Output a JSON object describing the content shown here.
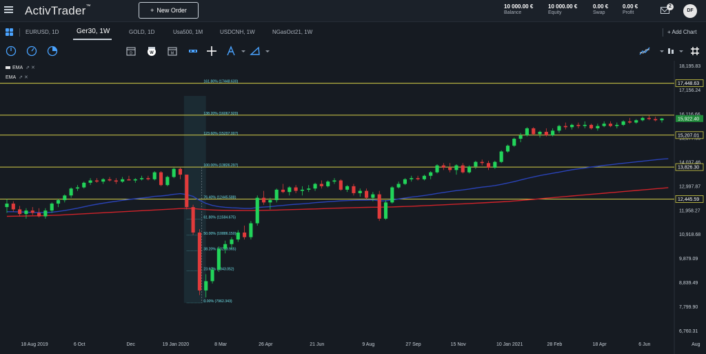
{
  "header": {
    "logo": "ActivTrader",
    "logo_tm": "™",
    "new_order": "New Order",
    "new_order_plus": "+",
    "balance": {
      "value": "10 000.00 €",
      "label": "Balance"
    },
    "equity": {
      "value": "10 000.00 €",
      "label": "Equity"
    },
    "swap": {
      "value": "0.00 €",
      "label": "Swap"
    },
    "profit": {
      "value": "0.00 €",
      "label": "Profit"
    },
    "notifications": "2",
    "avatar": "DF"
  },
  "tabs": [
    {
      "label": "EURUSD, 1D"
    },
    {
      "label": "Ger30, 1W"
    },
    {
      "label": "GOLD, 1D"
    },
    {
      "label": "Usa500, 1M"
    },
    {
      "label": "USDCNH, 1W"
    },
    {
      "label": "NGasOct21, 1W"
    }
  ],
  "add_chart": "+ Add Chart",
  "toolbar_icons": [
    "circle-cursor-icon",
    "circle-arrow-icon",
    "circle-pie-icon",
    "calendar-d-icon",
    "calendar-w-icon",
    "calendar-m-icon",
    "bar-type-icon",
    "crosshair-icon",
    "drawing-icon",
    "shapes-icon",
    "indicator-icon",
    "chart-type-icon",
    "more-icon",
    "grid-hash-icon"
  ],
  "indicators": [
    {
      "label": "EMA",
      "icons": "⇗ ✕"
    },
    {
      "label": "EMA",
      "icons": "⇗ ✕"
    }
  ],
  "colors": {
    "up": "#22d45a",
    "down": "#e03b3b",
    "ema_blue": "#2a43b8",
    "ema_red": "#d0232a",
    "fib": "#d6d04a",
    "bg": "#161b22"
  },
  "chart_data": {
    "type": "candlestick",
    "symbol": "Ger30",
    "timeframe": "1W",
    "y_ticks": [
      "18,195.83",
      "17,156.24",
      "16,116.66",
      "15,077.05",
      "14,037.46",
      "12,997.87",
      "11,958.27",
      "10,918.68",
      "9,879.09",
      "8,839.49",
      "7,799.90",
      "6,760.31"
    ],
    "y_tick_values": [
      18195.83,
      17156.24,
      16116.66,
      15077.05,
      14037.46,
      12997.87,
      11958.27,
      10918.68,
      9879.09,
      8839.49,
      7799.9,
      6760.31
    ],
    "x_ticks": [
      "18 Aug 2019",
      "6 Oct",
      "Dec",
      "19 Jan 2020",
      "8 Mar",
      "26 Apr",
      "21 Jun",
      "9 Aug",
      "27 Sep",
      "15 Nov",
      "10 Jan 2021",
      "28 Feb",
      "18 Apr",
      "6 Jun",
      "Aug"
    ],
    "x_tick_index": [
      0,
      7,
      15,
      22,
      29,
      36,
      44,
      52,
      59,
      66,
      74,
      81,
      88,
      95,
      103
    ],
    "ylim": [
      6500,
      18300
    ],
    "price_labels": [
      {
        "text": "17,448.63",
        "value": 17448.63,
        "style": "outline"
      },
      {
        "text": "15,922.40",
        "value": 15922.4,
        "style": "current"
      },
      {
        "text": "15,207.01",
        "value": 15207.01,
        "style": "outline"
      },
      {
        "text": "13,826.30",
        "value": 13826.3,
        "style": "outline"
      },
      {
        "text": "12,445.59",
        "value": 12445.59,
        "style": "outline"
      }
    ],
    "fib_levels": [
      {
        "label": "161.80% (17448.630)",
        "value": 17448.63,
        "line": true
      },
      {
        "label": "138.20% (16067.920)",
        "value": 16067.92,
        "line": true
      },
      {
        "label": "123.60% (15207.007)",
        "value": 15207.01,
        "line": true
      },
      {
        "label": "100.00% (13826.297)",
        "value": 13826.3,
        "line": true
      },
      {
        "label": "76.40% (12445.588)",
        "value": 12445.59,
        "line": true
      },
      {
        "label": "61.80% (11584.675)",
        "value": 11584.68,
        "line": false
      },
      {
        "label": "50.00% (10886.150)",
        "value": 10886.15,
        "line": false
      },
      {
        "label": "38.20% (10203.965)",
        "value": 10203.97,
        "line": false
      },
      {
        "label": "23.60% (9343.052)",
        "value": 9343.05,
        "line": false
      },
      {
        "label": "0.00% (7962.343)",
        "value": 7962.34,
        "line": false
      }
    ],
    "ohlc": [
      [
        12100,
        12450,
        11850,
        12250
      ],
      [
        12250,
        12350,
        11900,
        12000
      ],
      [
        12000,
        12150,
        11700,
        11800
      ],
      [
        11800,
        12050,
        11600,
        11950
      ],
      [
        11950,
        12100,
        11750,
        11850
      ],
      [
        11850,
        12050,
        11650,
        11700
      ],
      [
        11700,
        12050,
        11600,
        11950
      ],
      [
        11950,
        12300,
        11850,
        12250
      ],
      [
        12250,
        12450,
        12100,
        12400
      ],
      [
        12400,
        12650,
        12300,
        12600
      ],
      [
        12600,
        12950,
        12500,
        12900
      ],
      [
        12900,
        13050,
        12800,
        12950
      ],
      [
        12950,
        13200,
        12900,
        13150
      ],
      [
        13150,
        13350,
        13050,
        13250
      ],
      [
        13250,
        13350,
        13150,
        13200
      ],
      [
        13200,
        13350,
        13100,
        13300
      ],
      [
        13300,
        13400,
        13200,
        13250
      ],
      [
        13250,
        13350,
        13100,
        13200
      ],
      [
        13200,
        13400,
        13150,
        13300
      ],
      [
        13300,
        13450,
        13250,
        13250
      ],
      [
        13250,
        13350,
        13150,
        13300
      ],
      [
        13300,
        13450,
        13250,
        13350
      ],
      [
        13350,
        13450,
        13250,
        13300
      ],
      [
        13300,
        13650,
        13250,
        13600
      ],
      [
        13600,
        13650,
        13000,
        13050
      ],
      [
        13050,
        13450,
        13000,
        13400
      ],
      [
        13400,
        13800,
        13350,
        13750
      ],
      [
        13750,
        13800,
        13300,
        13500
      ],
      [
        13500,
        13500,
        12000,
        12100
      ],
      [
        12100,
        12200,
        10900,
        11000
      ],
      [
        11000,
        11150,
        8300,
        8500
      ],
      [
        8500,
        9200,
        8200,
        8900
      ],
      [
        8900,
        9500,
        8800,
        9400
      ],
      [
        9400,
        10400,
        9300,
        10300
      ],
      [
        10300,
        10650,
        10100,
        10500
      ],
      [
        10500,
        10800,
        10300,
        10700
      ],
      [
        10700,
        11100,
        10600,
        11000
      ],
      [
        11000,
        11300,
        10700,
        10800
      ],
      [
        10800,
        11500,
        10700,
        11400
      ],
      [
        11400,
        12600,
        11300,
        12500
      ],
      [
        12500,
        12800,
        12200,
        12300
      ],
      [
        12300,
        12500,
        12000,
        12400
      ],
      [
        12400,
        12900,
        12300,
        12850
      ],
      [
        12850,
        13100,
        12700,
        12750
      ],
      [
        12750,
        13000,
        12600,
        12950
      ],
      [
        12950,
        13050,
        12700,
        12800
      ],
      [
        12800,
        13000,
        12600,
        12850
      ],
      [
        12850,
        13050,
        12750,
        12900
      ],
      [
        12900,
        13150,
        12800,
        13100
      ],
      [
        13100,
        13250,
        12900,
        13000
      ],
      [
        13000,
        13250,
        12950,
        13200
      ],
      [
        13200,
        13350,
        13100,
        13250
      ],
      [
        13250,
        13300,
        12800,
        12850
      ],
      [
        12850,
        13050,
        12750,
        13000
      ],
      [
        13000,
        13100,
        12600,
        12700
      ],
      [
        12700,
        12900,
        12550,
        12800
      ],
      [
        12800,
        12900,
        12450,
        12500
      ],
      [
        12500,
        12750,
        12350,
        12650
      ],
      [
        12650,
        12800,
        11500,
        11600
      ],
      [
        11600,
        12400,
        11550,
        12300
      ],
      [
        12300,
        13000,
        12250,
        12950
      ],
      [
        12950,
        13200,
        12900,
        13100
      ],
      [
        13100,
        13350,
        13050,
        13300
      ],
      [
        13300,
        13450,
        13200,
        13350
      ],
      [
        13350,
        13450,
        13250,
        13300
      ],
      [
        13300,
        13500,
        13250,
        13450
      ],
      [
        13450,
        13650,
        13300,
        13600
      ],
      [
        13600,
        13950,
        13550,
        13900
      ],
      [
        13900,
        14000,
        13700,
        13800
      ],
      [
        13800,
        14000,
        13600,
        13700
      ],
      [
        13700,
        13950,
        13500,
        13900
      ],
      [
        13900,
        14000,
        13550,
        13600
      ],
      [
        13600,
        13900,
        13550,
        13850
      ],
      [
        13850,
        14100,
        13750,
        14050
      ],
      [
        14050,
        14150,
        13900,
        14000
      ],
      [
        14000,
        14100,
        13700,
        13800
      ],
      [
        13800,
        14100,
        13750,
        14050
      ],
      [
        14050,
        14550,
        14000,
        14500
      ],
      [
        14500,
        14800,
        14450,
        14750
      ],
      [
        14750,
        15100,
        14700,
        15050
      ],
      [
        15050,
        15300,
        14900,
        15200
      ],
      [
        15200,
        15550,
        15150,
        15500
      ],
      [
        15500,
        15550,
        15200,
        15250
      ],
      [
        15250,
        15400,
        15100,
        15350
      ],
      [
        15350,
        15500,
        15150,
        15200
      ],
      [
        15200,
        15500,
        15150,
        15400
      ],
      [
        15400,
        15650,
        15300,
        15600
      ],
      [
        15600,
        15750,
        15450,
        15550
      ],
      [
        15550,
        15700,
        15450,
        15650
      ],
      [
        15650,
        15750,
        15500,
        15600
      ],
      [
        15600,
        15800,
        15500,
        15650
      ],
      [
        15650,
        15700,
        15450,
        15500
      ],
      [
        15500,
        15700,
        15400,
        15600
      ],
      [
        15600,
        15800,
        15550,
        15700
      ],
      [
        15700,
        15800,
        15550,
        15600
      ],
      [
        15600,
        15750,
        15500,
        15650
      ],
      [
        15650,
        15850,
        15600,
        15800
      ],
      [
        15800,
        15950,
        15700,
        15750
      ],
      [
        15750,
        15900,
        15700,
        15850
      ],
      [
        15850,
        16000,
        15800,
        15950
      ],
      [
        15950,
        16050,
        15850,
        15900
      ],
      [
        15900,
        16000,
        15800,
        15850
      ],
      [
        15850,
        15950,
        15750,
        15922
      ]
    ],
    "ema_fast": [
      11900,
      11900,
      11890,
      11880,
      11870,
      11860,
      11860,
      11880,
      11910,
      11950,
      12000,
      12050,
      12110,
      12170,
      12220,
      12270,
      12310,
      12350,
      12390,
      12430,
      12460,
      12490,
      12520,
      12560,
      12580,
      12610,
      12650,
      12680,
      12640,
      12560,
      12390,
      12260,
      12170,
      12120,
      12090,
      12070,
      12060,
      12040,
      12040,
      12080,
      12100,
      12120,
      12150,
      12170,
      12200,
      12220,
      12240,
      12260,
      12290,
      12310,
      12330,
      12350,
      12370,
      12380,
      12390,
      12400,
      12400,
      12410,
      12370,
      12370,
      12410,
      12450,
      12490,
      12530,
      12560,
      12600,
      12640,
      12690,
      12730,
      12770,
      12810,
      12840,
      12880,
      12920,
      12960,
      12990,
      13030,
      13080,
      13140,
      13200,
      13270,
      13340,
      13400,
      13460,
      13510,
      13560,
      13610,
      13660,
      13710,
      13750,
      13790,
      13830,
      13860,
      13900,
      13930,
      13960,
      13990,
      14020,
      14050,
      14080,
      14110,
      14140,
      14170,
      14190
    ],
    "ema_slow": [
      11700,
      11705,
      11710,
      11715,
      11720,
      11725,
      11730,
      11740,
      11750,
      11765,
      11780,
      11795,
      11810,
      11825,
      11840,
      11855,
      11870,
      11885,
      11900,
      11915,
      11930,
      11945,
      11960,
      11975,
      11990,
      12005,
      12020,
      12035,
      12040,
      12035,
      12010,
      11990,
      11975,
      11965,
      11960,
      11955,
      11952,
      11950,
      11950,
      11955,
      11960,
      11965,
      11972,
      11980,
      11988,
      11996,
      12004,
      12012,
      12020,
      12030,
      12040,
      12050,
      12058,
      12066,
      12074,
      12080,
      12086,
      12092,
      12094,
      12098,
      12106,
      12116,
      12126,
      12136,
      12146,
      12158,
      12170,
      12184,
      12198,
      12212,
      12226,
      12240,
      12254,
      12268,
      12282,
      12296,
      12310,
      12326,
      12344,
      12364,
      12386,
      12410,
      12434,
      12458,
      12482,
      12506,
      12530,
      12554,
      12578,
      12602,
      12626,
      12650,
      12674,
      12698,
      12722,
      12746,
      12770,
      12794,
      12818,
      12842,
      12866,
      12890,
      12914,
      12938
    ]
  }
}
